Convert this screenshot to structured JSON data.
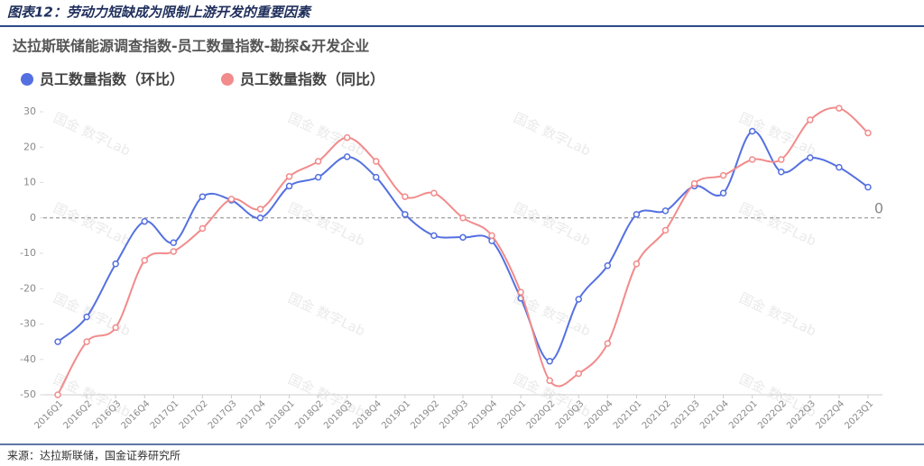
{
  "header": {
    "title": "图表12：劳动力短缺成为限制上游开发的重要因素"
  },
  "footer": {
    "source": "来源：达拉斯联储，国金证券研究所"
  },
  "chart_data": {
    "type": "line",
    "title": "达拉斯联储能源调查指数-员工数量指数-勘探&开发企业",
    "watermark": "国金 数字Lab",
    "categories": [
      "2016Q1",
      "2016Q2",
      "2016Q3",
      "2016Q4",
      "2017Q1",
      "2017Q2",
      "2017Q3",
      "2017Q4",
      "2018Q1",
      "2018Q2",
      "2018Q3",
      "2018Q4",
      "2019Q1",
      "2019Q2",
      "2019Q3",
      "2019Q4",
      "2020Q1",
      "2020Q2",
      "2020Q3",
      "2020Q4",
      "2021Q1",
      "2021Q2",
      "2021Q3",
      "2021Q4",
      "2022Q1",
      "2022Q2",
      "2022Q3",
      "2022Q4",
      "2023Q1"
    ],
    "series": [
      {
        "name": "员工数量指数（环比）",
        "color": "#5470e0",
        "values": [
          -35,
          -28,
          -13,
          -1,
          -7,
          6,
          5,
          0,
          9,
          11.5,
          17.3,
          11.5,
          1,
          -5,
          -5.5,
          -6.5,
          -22.7,
          -40.5,
          -23,
          -13.5,
          1,
          2,
          9,
          7,
          24.5,
          13,
          17,
          14.3,
          8.7
        ]
      },
      {
        "name": "员工数量指数（同比）",
        "color": "#f28b8b",
        "values": [
          -50,
          -35,
          -31,
          -12,
          -9.5,
          -3,
          5.3,
          2.5,
          11.7,
          16,
          22.7,
          16,
          6,
          7,
          0,
          -5,
          -21,
          -46,
          -44,
          -35.5,
          -13,
          -3.5,
          9.7,
          12,
          16.5,
          16.5,
          27.7,
          31,
          24
        ]
      }
    ],
    "zero_line": 0,
    "ylim": [
      -50,
      30
    ],
    "yticks": [
      -50,
      -40,
      -30,
      -20,
      -10,
      0,
      10,
      20,
      30
    ],
    "smooth": true
  }
}
